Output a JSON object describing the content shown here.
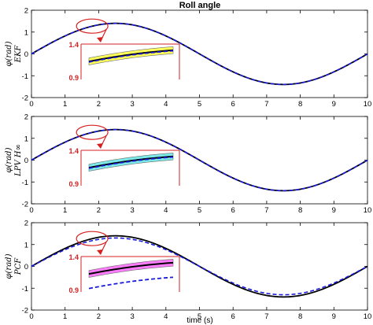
{
  "chart_data": {
    "title": "Roll angle",
    "xlabel": "time (s)",
    "type": "line",
    "colors": {
      "true_line": "#000000",
      "estimate_line": "#1a1adb",
      "zoom_box": "#d62020",
      "band_ekf": "#ffff40",
      "band_lpv": "#66e6e6",
      "band_pcf": "#ff66ff"
    },
    "subplots": [
      {
        "ylabel_main": "φ(rad)",
        "ylabel_sub": "EKF",
        "xlim": [
          0,
          10
        ],
        "ylim": [
          -2,
          2
        ],
        "xticks": [
          "0",
          "1",
          "2",
          "3",
          "4",
          "5",
          "6",
          "7",
          "8",
          "9",
          "10"
        ],
        "yticks": [
          "2",
          "1",
          "0",
          "-1",
          "-2"
        ],
        "estimate_offset": 0.0,
        "band": "band_ekf",
        "zoom": {
          "label_top": "1.4",
          "label_bottom": "0.9",
          "xrange": [
            1.6,
            2.2
          ],
          "yrange": [
            0.9,
            1.4
          ]
        }
      },
      {
        "ylabel_main": "φ(rad)",
        "ylabel_sub": "LPV H∞",
        "xlim": [
          0,
          10
        ],
        "ylim": [
          -2,
          2
        ],
        "xticks": [
          "0",
          "1",
          "2",
          "3",
          "4",
          "5",
          "6",
          "7",
          "8",
          "9",
          "10"
        ],
        "yticks": [
          "2",
          "1",
          "0",
          "-1",
          "-2"
        ],
        "estimate_offset": 0.0,
        "band": "band_lpv",
        "zoom": {
          "label_top": "1.4",
          "label_bottom": "0.9",
          "xrange": [
            1.6,
            2.2
          ],
          "yrange": [
            0.9,
            1.4
          ]
        }
      },
      {
        "ylabel_main": "φ(rad)",
        "ylabel_sub": "PCF",
        "xlim": [
          0,
          10
        ],
        "ylim": [
          -2,
          2
        ],
        "xticks": [
          "0",
          "1",
          "2",
          "3",
          "4",
          "5",
          "6",
          "7",
          "8",
          "9",
          "10"
        ],
        "yticks": [
          "2",
          "1",
          "0",
          "-1",
          "-2"
        ],
        "estimate_offset": -0.1,
        "band": "band_pcf",
        "zoom": {
          "label_top": "1.4",
          "label_bottom": "0.9",
          "xrange": [
            1.6,
            2.2
          ],
          "yrange": [
            0.9,
            1.4
          ]
        }
      }
    ],
    "series": [
      {
        "role": "true",
        "amplitude": 1.4,
        "period": 10
      },
      {
        "role": "estimate",
        "amplitude": 1.4,
        "period": 10
      }
    ]
  }
}
